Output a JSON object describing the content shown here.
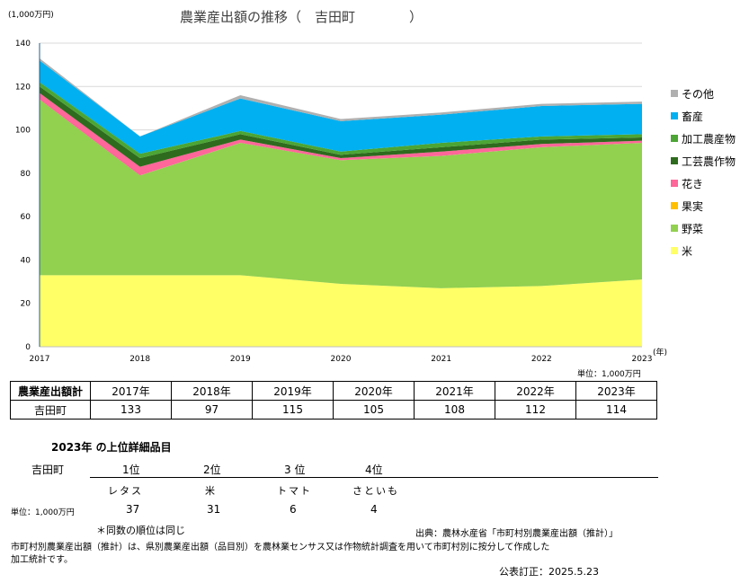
{
  "chart_data": {
    "type": "area",
    "stacked": true,
    "title": "農業産出額の推移（　吉田町　　　　）",
    "yunit": "(1,000万円)",
    "xunit": "(年)",
    "x": [
      "2017",
      "2018",
      "2019",
      "2020",
      "2021",
      "2022",
      "2023"
    ],
    "yticks": [
      "0",
      "20",
      "40",
      "60",
      "80",
      "100",
      "120",
      "140"
    ],
    "ylim": [
      0,
      140
    ],
    "grid": true,
    "legend_position": "right",
    "series": [
      {
        "name": "米",
        "color": "#FFFF66",
        "values": [
          33,
          33,
          33,
          29,
          27,
          28,
          31
        ]
      },
      {
        "name": "野菜",
        "color": "#92D050",
        "values": [
          81,
          46,
          61,
          57,
          61,
          64,
          63
        ]
      },
      {
        "name": "果実",
        "color": "#FFC000",
        "values": [
          0,
          0,
          0,
          0,
          0,
          0,
          0
        ]
      },
      {
        "name": "花き",
        "color": "#FF6699",
        "values": [
          3,
          4,
          1.5,
          1,
          2,
          1.5,
          1
        ]
      },
      {
        "name": "工芸農作物",
        "color": "#2E6B1E",
        "values": [
          3,
          4,
          2.5,
          1.5,
          2,
          2,
          1.5
        ]
      },
      {
        "name": "加工農産物",
        "color": "#4CA534",
        "values": [
          2,
          2,
          1.5,
          1.5,
          2,
          1.5,
          1.5
        ]
      },
      {
        "name": "畜産",
        "color": "#00B0F0",
        "values": [
          10,
          8,
          15,
          14,
          13,
          14,
          14
        ]
      },
      {
        "name": "その他",
        "color": "#B0B0B0",
        "values": [
          1,
          0,
          1.5,
          1,
          1,
          1,
          1
        ]
      }
    ]
  },
  "unit_note_1": "単位：1,000万円",
  "totals_table": {
    "header": "農業産出額計",
    "row_label": "吉田町",
    "years": [
      "2017年",
      "2018年",
      "2019年",
      "2020年",
      "2021年",
      "2022年",
      "2023年"
    ],
    "values": [
      "133",
      "97",
      "115",
      "105",
      "108",
      "112",
      "114"
    ]
  },
  "ranking": {
    "title": "2023年 の上位詳細品目",
    "town": "吉田町",
    "unit": "単位：1,000万円",
    "ranks": [
      "1位",
      "2位",
      "3 位",
      "4位"
    ],
    "items": [
      "レタス",
      "米",
      "トマト",
      "さといも"
    ],
    "values": [
      "37",
      "31",
      "6",
      "4"
    ]
  },
  "notes": {
    "same_rank": "＊同数の順位は同じ",
    "source": "出典：農林水産省「市町村別農業産出額（推計）」",
    "desc_line1": "市町村別農業産出額（推計）は、県別農業産出額（品目別）を農林業センサス又は作物統計調査を用いて市町村別に按分して作成した",
    "desc_line2": "加工統計です。",
    "revision": "公表訂正：2025.5.23"
  }
}
